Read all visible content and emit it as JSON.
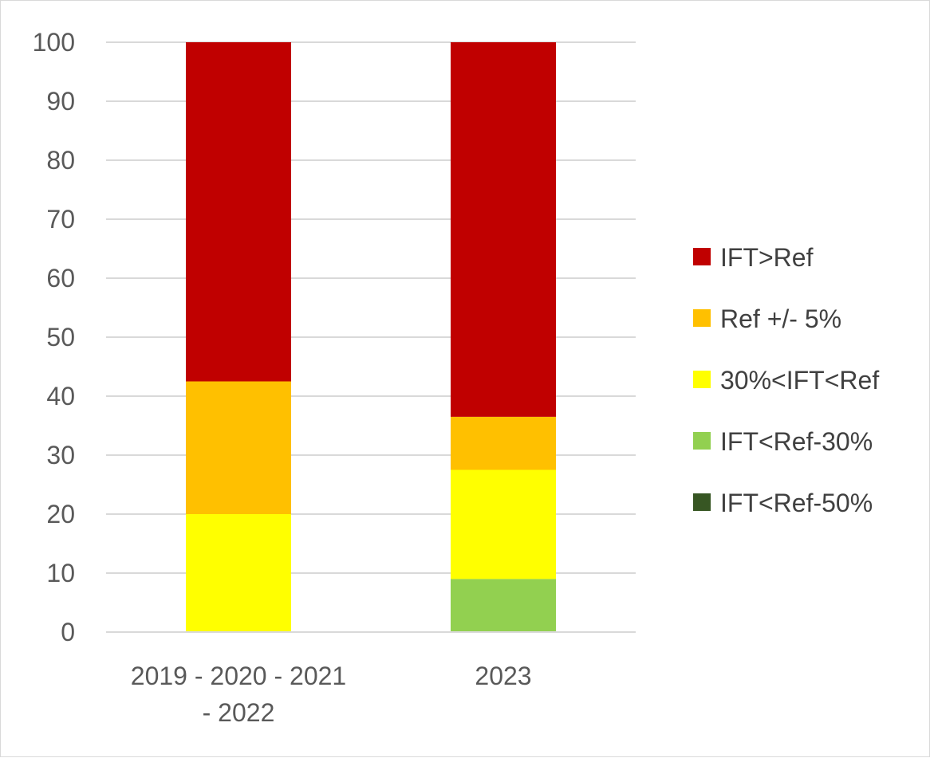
{
  "chart_data": {
    "type": "bar",
    "stacked": true,
    "categories": [
      [
        "2019 - 2020 - 2021",
        "- 2022"
      ],
      [
        "2023"
      ]
    ],
    "series": [
      {
        "name": "IFT<Ref-50%",
        "color": "#375623",
        "values": [
          0,
          0
        ]
      },
      {
        "name": "IFT<Ref-30%",
        "color": "#92d050",
        "values": [
          0,
          9
        ]
      },
      {
        "name": "30%<IFT<Ref",
        "color": "#ffff00",
        "values": [
          20,
          18.5
        ]
      },
      {
        "name": "Ref +/- 5%",
        "color": "#ffc000",
        "values": [
          22.5,
          9
        ]
      },
      {
        "name": "IFT>Ref",
        "color": "#c00000",
        "values": [
          57.5,
          63.5
        ]
      }
    ],
    "legend_order": [
      "IFT>Ref",
      "Ref +/- 5%",
      "30%<IFT<Ref",
      "IFT<Ref-30%",
      "IFT<Ref-50%"
    ],
    "ylim": [
      0,
      100
    ],
    "yticks": [
      0,
      10,
      20,
      30,
      40,
      50,
      60,
      70,
      80,
      90,
      100
    ],
    "grid": true,
    "legend_position": "right",
    "gridline_color": "#d9d9d9",
    "axis_line_color": "#d9d9d9"
  }
}
